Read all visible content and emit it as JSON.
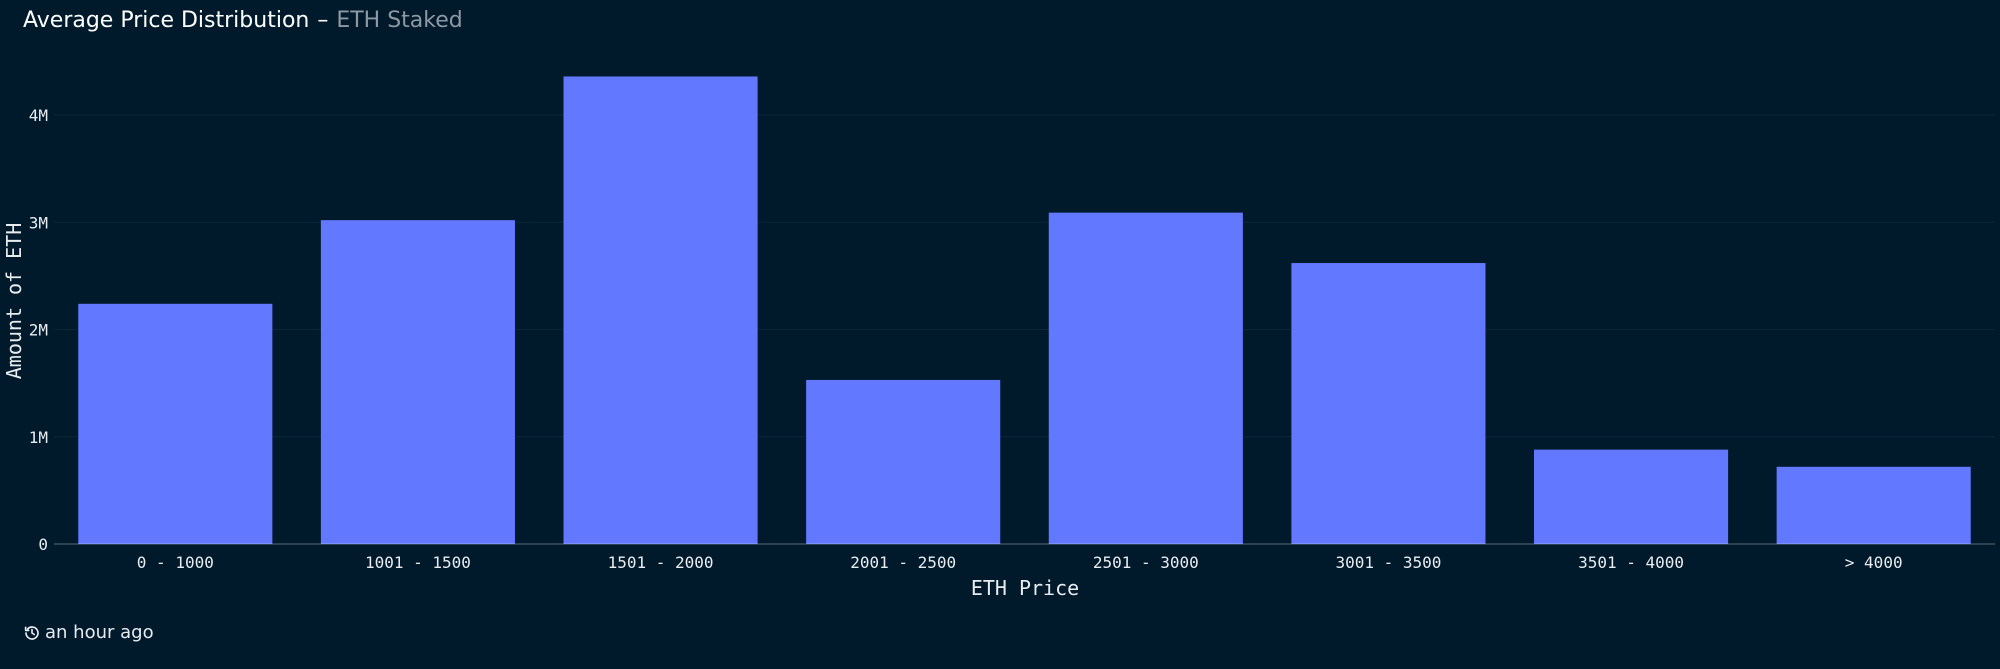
{
  "header": {
    "title": "Average Price Distribution",
    "separator": "–",
    "subtitle": "ETH Staked"
  },
  "footer": {
    "updated": "an hour ago",
    "icon": "history-icon"
  },
  "colors": {
    "background": "#001a2c",
    "bar": "#6178ff",
    "axis": "#ffffff",
    "grid": "#0b2638"
  },
  "chart_data": {
    "type": "bar",
    "title": "Average Price Distribution",
    "subtitle": "ETH Staked",
    "xlabel": "ETH Price",
    "ylabel": "Amount of ETH",
    "categories": [
      "0 - 1000",
      "1001 - 1500",
      "1501 - 2000",
      "2001 - 2500",
      "2501 - 3000",
      "3001 - 3500",
      "3501 - 4000",
      "> 4000"
    ],
    "values": [
      2240000,
      3020000,
      4360000,
      1530000,
      3090000,
      2620000,
      880000,
      720000
    ],
    "ylim": [
      0,
      4700000
    ],
    "yticks": [
      0,
      1000000,
      2000000,
      3000000,
      4000000
    ],
    "ytick_labels": [
      "0",
      "1M",
      "2M",
      "3M",
      "4M"
    ],
    "grid": true,
    "legend": "none"
  }
}
